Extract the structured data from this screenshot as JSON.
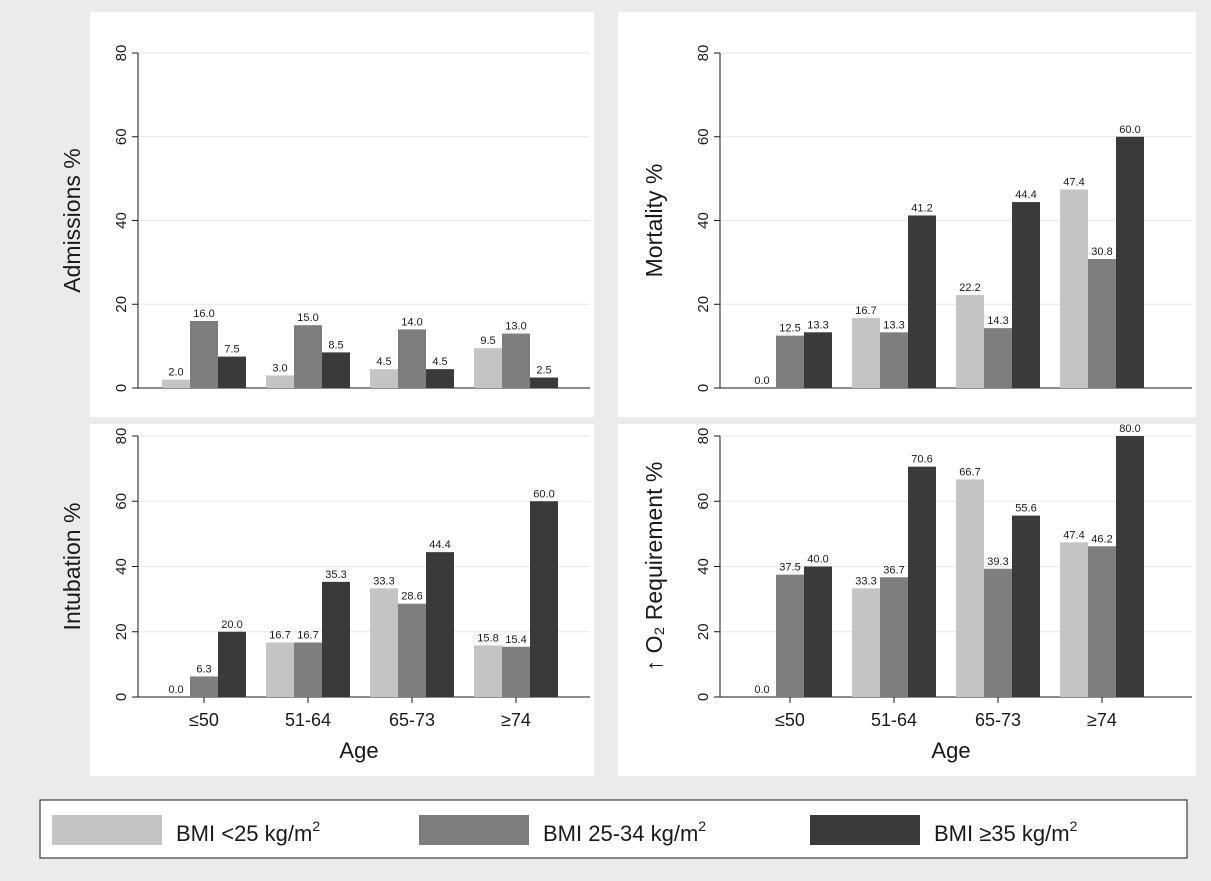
{
  "chart_data": [
    {
      "type": "bar",
      "ylabel": "Admissions %",
      "xlabel": "",
      "ylim": [
        0,
        80
      ],
      "yticks": [
        "0",
        "20",
        "40",
        "60",
        "80"
      ],
      "categories": [
        "",
        "",
        "",
        ""
      ],
      "series": [
        {
          "values": [
            2.0,
            3.0,
            4.5,
            9.5
          ],
          "labels": [
            "2.0",
            "3.0",
            "4.5",
            "9.5"
          ]
        },
        {
          "values": [
            16.0,
            15.0,
            14.0,
            13.0
          ],
          "labels": [
            "16.0",
            "15.0",
            "14.0",
            "13.0"
          ]
        },
        {
          "values": [
            7.5,
            8.5,
            4.5,
            2.5
          ],
          "labels": [
            "7.5",
            "8.5",
            "4.5",
            "2.5"
          ]
        }
      ]
    },
    {
      "type": "bar",
      "ylabel": "Mortality %",
      "xlabel": "",
      "ylim": [
        0,
        80
      ],
      "yticks": [
        "0",
        "20",
        "40",
        "60",
        "80"
      ],
      "categories": [
        "",
        "",
        "",
        ""
      ],
      "series": [
        {
          "values": [
            0.0,
            16.7,
            22.2,
            47.4
          ],
          "labels": [
            "0.0",
            "16.7",
            "22.2",
            "47.4"
          ]
        },
        {
          "values": [
            12.5,
            13.3,
            14.3,
            30.8
          ],
          "labels": [
            "12.5",
            "13.3",
            "14.3",
            "30.8"
          ]
        },
        {
          "values": [
            13.3,
            41.2,
            44.4,
            60.0
          ],
          "labels": [
            "13.3",
            "41.2",
            "44.4",
            "60.0"
          ]
        }
      ]
    },
    {
      "type": "bar",
      "ylabel": "Intubation %",
      "xlabel": "Age",
      "ylim": [
        0,
        80
      ],
      "yticks": [
        "0",
        "20",
        "40",
        "60",
        "80"
      ],
      "categories": [
        "≤50",
        "51-64",
        "65-73",
        "≥74"
      ],
      "series": [
        {
          "values": [
            0.0,
            16.7,
            33.3,
            15.8
          ],
          "labels": [
            "0.0",
            "16.7",
            "33.3",
            "15.8"
          ]
        },
        {
          "values": [
            6.3,
            16.7,
            28.6,
            15.4
          ],
          "labels": [
            "6.3",
            "16.7",
            "28.6",
            "15.4"
          ]
        },
        {
          "values": [
            20.0,
            35.3,
            44.4,
            60.0
          ],
          "labels": [
            "20.0",
            "35.3",
            "44.4",
            "60.0"
          ]
        }
      ]
    },
    {
      "type": "bar",
      "ylabel": "↑ O₂ Requirement %",
      "xlabel": "Age",
      "ylim": [
        0,
        80
      ],
      "yticks": [
        "0",
        "20",
        "40",
        "60",
        "80"
      ],
      "categories": [
        "≤50",
        "51-64",
        "65-73",
        "≥74"
      ],
      "series": [
        {
          "values": [
            0.0,
            33.3,
            66.7,
            47.4
          ],
          "labels": [
            "0.0",
            "33.3",
            "66.7",
            "47.4"
          ]
        },
        {
          "values": [
            37.5,
            36.7,
            39.3,
            46.2
          ],
          "labels": [
            "37.5",
            "36.7",
            "39.3",
            "46.2"
          ]
        },
        {
          "values": [
            40.0,
            70.6,
            55.6,
            80.0
          ],
          "labels": [
            "40.0",
            "70.6",
            "55.6",
            "80.0"
          ]
        }
      ]
    }
  ],
  "legend": {
    "placement": "bottom",
    "items": [
      {
        "label": "BMI <25 kg/m",
        "sup": "2",
        "color": "#c4c4c4"
      },
      {
        "label": "BMI 25-34 kg/m",
        "sup": "2",
        "color": "#7e7e7e"
      },
      {
        "label": "BMI ≥35 kg/m",
        "sup": "2",
        "color": "#3a3a3a"
      }
    ]
  },
  "colors": {
    "figure_bg": "#ebebeb",
    "plot_bg": "#ffffff",
    "grid": "#e6e6e6",
    "axis": "#1a1a1a"
  }
}
